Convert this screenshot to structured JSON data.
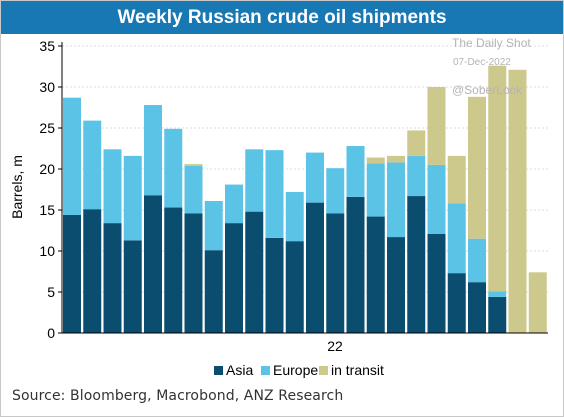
{
  "header": {
    "title": "Weekly Russian crude oil shipments"
  },
  "watermark": {
    "line1": "The Daily Shot",
    "line2": "07-Dec-2022",
    "line3": "@SoberLook"
  },
  "footer": {
    "source": "Source:  Bloomberg, Macrobond, ANZ Research"
  },
  "colors": {
    "asia": "#0a4d6f",
    "europe": "#5bc3e6",
    "in_transit": "#cdc98d",
    "title_bg": "#1878b4"
  },
  "chart_data": {
    "type": "bar",
    "stacked": true,
    "ylabel": "Barrels, m",
    "xlabel": "",
    "x_tick_label": "22",
    "ylim": [
      0,
      35
    ],
    "yticks": [
      0,
      5,
      10,
      15,
      20,
      25,
      30,
      35
    ],
    "grid": true,
    "legend_position": "bottom",
    "series": [
      {
        "name": "Asia",
        "color": "#0a4d6f",
        "values": [
          14.4,
          15.1,
          13.4,
          11.3,
          16.8,
          15.3,
          14.6,
          10.1,
          13.4,
          14.8,
          11.6,
          11.2,
          15.9,
          14.6,
          16.6,
          14.2,
          11.7,
          16.7,
          12.1,
          7.3,
          6.2,
          4.4,
          0,
          0
        ]
      },
      {
        "name": "Europe",
        "color": "#5bc3e6",
        "values": [
          14.3,
          10.8,
          9.0,
          10.3,
          11.0,
          9.6,
          5.8,
          6.0,
          4.7,
          7.6,
          10.7,
          6.0,
          6.1,
          5.5,
          6.2,
          6.5,
          9.1,
          4.9,
          8.4,
          8.5,
          5.3,
          0.7,
          0,
          0
        ]
      },
      {
        "name": "in transit",
        "color": "#cdc98d",
        "values": [
          0,
          0,
          0,
          0,
          0,
          0,
          0.2,
          0,
          0,
          0,
          0,
          0,
          0,
          0,
          0,
          0.7,
          0.8,
          3.1,
          9.5,
          5.8,
          17.3,
          27.5,
          32.1,
          7.4
        ]
      }
    ]
  }
}
